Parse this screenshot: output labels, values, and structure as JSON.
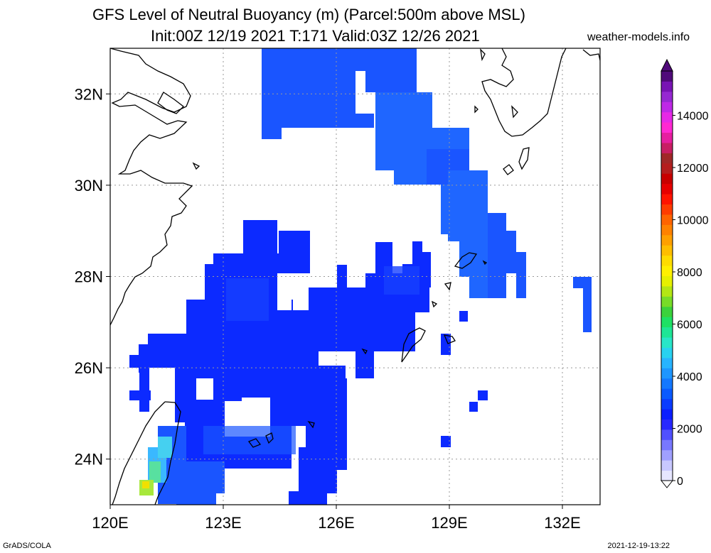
{
  "title_line1": "GFS Level of Neutral Buoyancy (m) (Parcel:500m above MSL)",
  "title_line2": "Init:00Z 12/19 2021 T:171 Valid:03Z 12/26 2021",
  "credit": "weather-models.info",
  "footer_left": "GrADS/COLA",
  "footer_right": "2021-12-19-13:22",
  "map": {
    "lon_range": [
      120,
      133
    ],
    "lat_range": [
      23,
      33
    ],
    "x_ticks": [
      {
        "lon": 120,
        "label": "120E"
      },
      {
        "lon": 123,
        "label": "123E"
      },
      {
        "lon": 126,
        "label": "126E"
      },
      {
        "lon": 129,
        "label": "129E"
      },
      {
        "lon": 132,
        "label": "132E"
      }
    ],
    "y_ticks": [
      {
        "lat": 24,
        "label": "24N"
      },
      {
        "lat": 26,
        "label": "26N"
      },
      {
        "lat": 28,
        "label": "28N"
      },
      {
        "lat": 30,
        "label": "30N"
      },
      {
        "lat": 32,
        "label": "32N"
      }
    ]
  },
  "colorbar": {
    "labels": [
      "0",
      "2000",
      "4000",
      "6000",
      "8000",
      "10000",
      "12000",
      "14000"
    ],
    "colors": [
      "#e6e6ff",
      "#c8c8ff",
      "#a0a0ff",
      "#7878ff",
      "#5050ff",
      "#2828ff",
      "#0a1eff",
      "#0a3cff",
      "#0a5aff",
      "#1478ff",
      "#1e96ff",
      "#28b4ff",
      "#28d2f0",
      "#28e6c8",
      "#1ee696",
      "#1ee164",
      "#3cd23c",
      "#78dc28",
      "#b4e614",
      "#e6f000",
      "#fff000",
      "#ffdc00",
      "#ffbe00",
      "#ffa000",
      "#ff8200",
      "#ff6400",
      "#ff3c00",
      "#ff1400",
      "#e60000",
      "#c80000",
      "#b41e1e",
      "#a02828",
      "#c81e64",
      "#e61ea0",
      "#ff28d2",
      "#e628e6",
      "#be28e6",
      "#9628d2",
      "#7814b4",
      "#500a7a"
    ]
  }
}
